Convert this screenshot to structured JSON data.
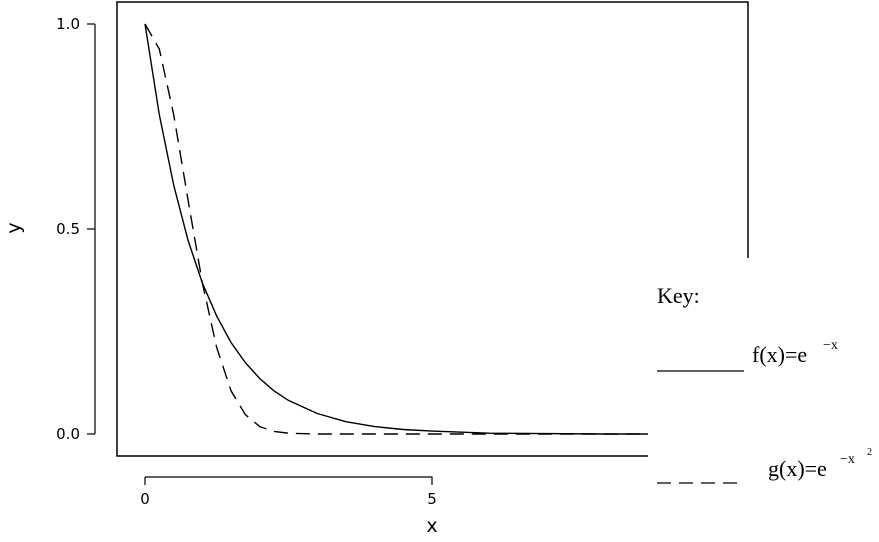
{
  "chart_data": {
    "type": "line",
    "xlabel": "x",
    "ylabel": "y",
    "xlim": [
      0,
      10
    ],
    "ylim": [
      0,
      1
    ],
    "x_ticks": [
      "0",
      "5"
    ],
    "y_ticks": [
      "0.0",
      "0.5",
      "1.0"
    ],
    "grid": false,
    "legend_position": "right",
    "series": [
      {
        "name": "f(x)=e^{-x}",
        "style": "solid",
        "x": [
          0,
          0.25,
          0.5,
          0.75,
          1,
          1.25,
          1.5,
          1.75,
          2,
          2.25,
          2.5,
          3,
          3.5,
          4,
          4.5,
          5,
          6,
          7,
          8,
          9,
          10
        ],
        "y": [
          1,
          0.779,
          0.607,
          0.472,
          0.368,
          0.287,
          0.223,
          0.174,
          0.135,
          0.105,
          0.082,
          0.05,
          0.03,
          0.018,
          0.011,
          0.007,
          0.002,
          0.001,
          0,
          0,
          0
        ]
      },
      {
        "name": "g(x)=e^{-x^2}",
        "style": "dashed",
        "x": [
          0,
          0.25,
          0.5,
          0.75,
          1,
          1.25,
          1.5,
          1.75,
          2,
          2.25,
          2.5,
          3,
          3.5,
          4,
          5,
          6,
          7,
          8,
          9,
          10
        ],
        "y": [
          1,
          0.939,
          0.779,
          0.57,
          0.368,
          0.21,
          0.105,
          0.047,
          0.018,
          0.006,
          0.002,
          0,
          0,
          0,
          0,
          0,
          0,
          0,
          0,
          0
        ]
      }
    ]
  },
  "legend": {
    "title": "Key:",
    "f_label": "f(x)=e",
    "f_exp": "−x",
    "g_label": "g(x)=e",
    "g_exp": "−x",
    "g_exp_sup": "2"
  }
}
